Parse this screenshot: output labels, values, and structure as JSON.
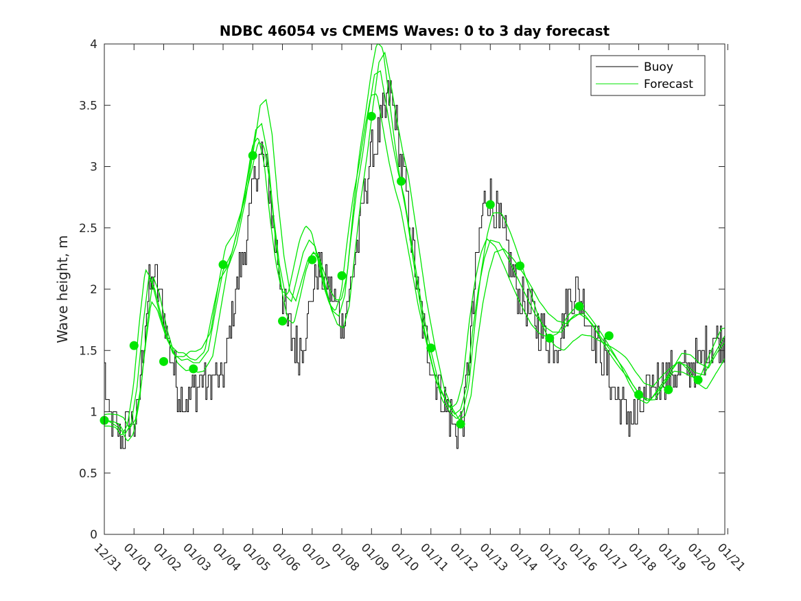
{
  "chart_data": {
    "type": "line",
    "title": "NDBC 46054 vs CMEMS Waves: 0 to 3 day forecast",
    "xlabel": "",
    "ylabel": "Wave height, m",
    "ylim": [
      0,
      4
    ],
    "xlim": [
      0,
      20.9
    ],
    "yticks": [
      0,
      0.5,
      1,
      1.5,
      2,
      2.5,
      3,
      3.5,
      4
    ],
    "ytick_labels": [
      "0",
      "0.5",
      "1",
      "1.5",
      "2",
      "2.5",
      "3",
      "3.5",
      "4"
    ],
    "xtick_labels": [
      "12/31",
      "01/01",
      "01/02",
      "01/03",
      "01/04",
      "01/05",
      "01/06",
      "01/07",
      "01/08",
      "01/09",
      "01/10",
      "01/11",
      "01/12",
      "01/13",
      "01/14",
      "01/15",
      "01/16",
      "01/17",
      "01/18",
      "01/19",
      "01/20",
      "01/21"
    ],
    "xtick_note": "day offset since 12/31 00:00",
    "legend": {
      "location": "top-right",
      "entries": [
        "Buoy",
        "Forecast"
      ]
    },
    "colors": {
      "buoy": "#000000",
      "forecast": "#00e600"
    },
    "series": [
      {
        "name": "Buoy",
        "style": "line",
        "anchor_x": [
          0,
          0.1,
          0.3,
          0.5,
          0.7,
          0.9,
          1.1,
          1.2,
          1.35,
          1.5,
          1.7,
          1.9,
          2.0,
          2.2,
          2.5,
          2.8,
          3.0,
          3.1,
          3.3,
          3.5,
          3.7,
          3.9,
          4.1,
          4.3,
          4.5,
          4.7,
          4.9,
          5.0,
          5.1,
          5.3,
          5.5,
          5.7,
          5.9,
          6.1,
          6.3,
          6.5,
          6.7,
          6.9,
          7.0,
          7.2,
          7.4,
          7.6,
          7.8,
          8.0,
          8.2,
          8.4,
          8.6,
          8.8,
          9.0,
          9.2,
          9.4,
          9.6,
          9.8,
          10.0,
          10.2,
          10.4,
          10.6,
          10.8,
          11.0,
          11.2,
          11.4,
          11.6,
          11.8,
          11.95,
          12.1,
          12.3,
          12.5,
          12.7,
          12.9,
          13.1,
          13.3,
          13.5,
          13.7,
          13.9,
          14.1,
          14.3,
          14.5,
          14.7,
          14.9,
          15.1,
          15.3,
          15.5,
          15.7,
          15.9,
          16.1,
          16.3,
          16.5,
          16.7,
          16.9,
          17.1,
          17.3,
          17.5,
          17.7,
          17.9,
          18.1,
          18.3,
          18.5,
          18.7,
          18.9,
          19.1,
          19.3,
          19.5,
          19.7,
          19.9,
          20.1,
          20.3,
          20.5,
          20.7,
          20.9
        ],
        "anchor_y": [
          1.3,
          0.95,
          0.9,
          0.8,
          0.85,
          0.95,
          0.9,
          1.3,
          1.7,
          2.0,
          2.1,
          1.9,
          1.8,
          1.5,
          1.15,
          1.1,
          1.2,
          1.2,
          1.3,
          1.2,
          1.3,
          1.2,
          1.4,
          1.8,
          2.1,
          2.3,
          2.6,
          2.85,
          3.0,
          3.1,
          2.9,
          2.5,
          2.1,
          1.8,
          1.6,
          1.5,
          1.6,
          1.8,
          2.0,
          2.2,
          2.1,
          2.0,
          1.85,
          1.75,
          1.9,
          2.2,
          2.5,
          2.85,
          3.1,
          3.2,
          3.4,
          3.6,
          3.4,
          3.0,
          2.7,
          2.3,
          1.9,
          1.6,
          1.4,
          1.25,
          1.1,
          1.0,
          0.85,
          0.9,
          1.0,
          1.5,
          2.1,
          2.6,
          2.8,
          2.7,
          2.5,
          2.4,
          2.2,
          2.0,
          1.9,
          1.8,
          1.75,
          1.65,
          1.6,
          1.55,
          1.6,
          1.8,
          1.95,
          2.0,
          1.9,
          1.75,
          1.6,
          1.5,
          1.35,
          1.2,
          1.1,
          1.0,
          0.95,
          0.95,
          1.05,
          1.15,
          1.25,
          1.3,
          1.3,
          1.3,
          1.3,
          1.3,
          1.35,
          1.4,
          1.45,
          1.55,
          1.6,
          1.6,
          1.6
        ],
        "noise_amplitude": 0.18
      },
      {
        "name": "Forecast",
        "style": "line",
        "runs": 4,
        "anchor_x": [
          0,
          0.3,
          0.5,
          0.7,
          0.9,
          1.1,
          1.3,
          1.5,
          1.7,
          2.0,
          2.3,
          2.6,
          2.8,
          3.0,
          3.2,
          3.5,
          3.8,
          4.0,
          4.3,
          4.6,
          4.9,
          5.1,
          5.3,
          5.5,
          5.7,
          5.9,
          6.1,
          6.3,
          6.5,
          6.7,
          6.9,
          7.1,
          7.3,
          7.5,
          7.7,
          7.9,
          8.1,
          8.3,
          8.5,
          8.7,
          8.9,
          9.1,
          9.3,
          9.5,
          9.7,
          9.9,
          10.1,
          10.4,
          10.7,
          11.0,
          11.3,
          11.6,
          11.8,
          12.0,
          12.2,
          12.4,
          12.6,
          12.8,
          13.0,
          13.3,
          13.6,
          13.9,
          14.2,
          14.5,
          14.8,
          15.1,
          15.4,
          15.7,
          16.0,
          16.3,
          16.6,
          16.9,
          17.2,
          17.5,
          17.8,
          18.1,
          18.4,
          18.7,
          19.0,
          19.3,
          19.6,
          19.9,
          20.2,
          20.5,
          20.9
        ],
        "anchor_y": [
          0.93,
          0.92,
          0.9,
          0.82,
          0.9,
          1.2,
          1.7,
          2.1,
          2.0,
          1.7,
          1.48,
          1.42,
          1.43,
          1.4,
          1.4,
          1.5,
          1.9,
          2.15,
          2.3,
          2.6,
          3.0,
          3.3,
          3.35,
          3.1,
          2.6,
          2.2,
          1.95,
          1.9,
          2.1,
          2.3,
          2.4,
          2.35,
          2.15,
          1.95,
          1.82,
          1.78,
          1.95,
          2.4,
          2.8,
          3.1,
          3.45,
          3.75,
          3.78,
          3.5,
          3.2,
          2.95,
          2.75,
          2.3,
          1.85,
          1.5,
          1.2,
          1.05,
          0.98,
          1.02,
          1.2,
          1.65,
          2.0,
          2.25,
          2.4,
          2.38,
          2.25,
          2.1,
          1.95,
          1.8,
          1.7,
          1.65,
          1.65,
          1.75,
          1.8,
          1.75,
          1.65,
          1.55,
          1.45,
          1.35,
          1.22,
          1.12,
          1.1,
          1.2,
          1.3,
          1.4,
          1.38,
          1.32,
          1.3,
          1.45,
          1.62
        ],
        "run_offsets": [
          [
            0.0,
            0.0
          ],
          [
            0.15,
            0.06
          ],
          [
            -0.12,
            -0.05
          ],
          [
            0.08,
            0.1
          ]
        ]
      },
      {
        "name": "Forecast points",
        "style": "marker",
        "x": [
          0,
          1,
          2,
          3,
          4,
          5,
          6,
          7,
          8,
          9,
          10,
          11,
          12,
          13,
          14,
          15,
          16,
          17,
          18,
          19,
          20
        ],
        "y": [
          0.93,
          1.54,
          1.41,
          1.35,
          2.2,
          3.09,
          1.74,
          2.24,
          2.11,
          3.41,
          2.88,
          1.52,
          0.9,
          2.69,
          2.19,
          1.6,
          1.86,
          1.62,
          1.14,
          1.18,
          1.26
        ]
      }
    ]
  }
}
